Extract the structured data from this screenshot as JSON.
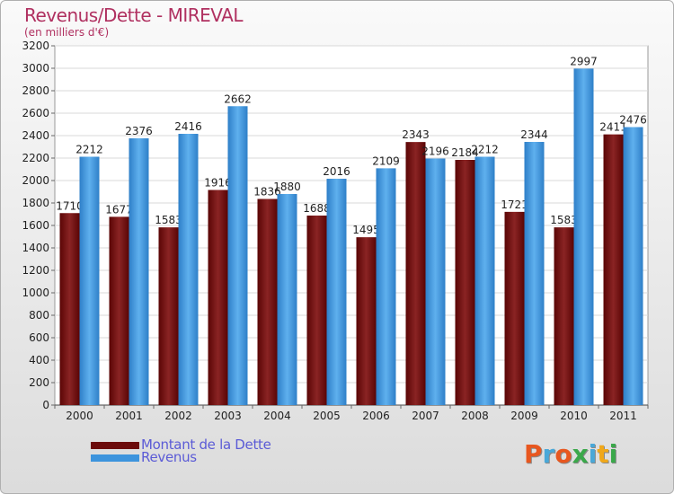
{
  "chart_data": {
    "type": "bar",
    "title": "Revenus/Dette - MIREVAL",
    "subtitle": "(en milliers d'€)",
    "categories": [
      "2000",
      "2001",
      "2002",
      "2003",
      "2004",
      "2005",
      "2006",
      "2007",
      "2008",
      "2009",
      "2010",
      "2011"
    ],
    "series": [
      {
        "name": "Montant de la Dette",
        "color": "#6b0a0a",
        "values": [
          1710,
          1677,
          1583,
          1916,
          1836,
          1688,
          1495,
          2343,
          2184,
          1721,
          1583,
          2411
        ]
      },
      {
        "name": "Revenus",
        "color": "#3d94dd",
        "values": [
          2212,
          2376,
          2416,
          2662,
          1880,
          2016,
          2109,
          2196,
          2212,
          2344,
          2997,
          2476
        ]
      }
    ],
    "ylim": [
      0,
      3200
    ],
    "yticks": [
      0,
      200,
      400,
      600,
      800,
      1000,
      1200,
      1400,
      1600,
      1800,
      2000,
      2200,
      2400,
      2600,
      2800,
      3000,
      3200
    ],
    "grid": true,
    "legend_placement": "bottom-left"
  },
  "brand": {
    "letters": [
      {
        "ch": "P",
        "color": "#e8571f"
      },
      {
        "ch": "r",
        "color": "#4aa8d8"
      },
      {
        "ch": "o",
        "color": "#e8571f"
      },
      {
        "ch": "x",
        "color": "#3aa84a"
      },
      {
        "ch": "i",
        "color": "#4aa8d8"
      },
      {
        "ch": "t",
        "color": "#f0a81a"
      },
      {
        "ch": "i",
        "color": "#3aa84a"
      }
    ]
  }
}
